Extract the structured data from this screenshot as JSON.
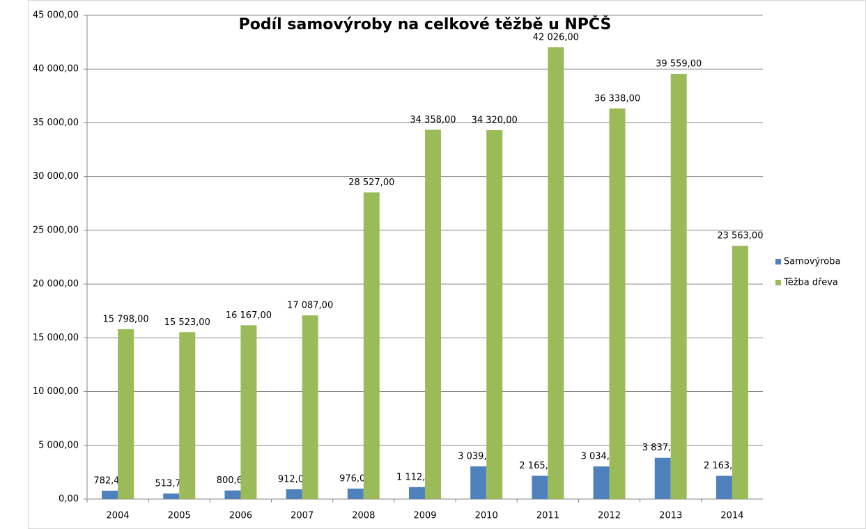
{
  "chart_data": {
    "type": "bar",
    "title": "Podíl samovýroby na celkové těžbě u NPČŠ",
    "categories": [
      "2004",
      "2005",
      "2006",
      "2007",
      "2008",
      "2009",
      "2010",
      "2011",
      "2012",
      "2013",
      "2014"
    ],
    "series": [
      {
        "name": "Samovýroba",
        "color": "#4f81bd",
        "values": [
          782.43,
          513.76,
          800.63,
          912.03,
          976.01,
          1112.94,
          3039.83,
          2165.11,
          3034.75,
          3837.41,
          2163.25
        ],
        "value_labels": [
          "782,43",
          "513,76",
          "800,63",
          "912,03",
          "976,01",
          "1 112,94",
          "3 039,83",
          "2 165,11",
          "3 034,75",
          "3 837,41",
          "2 163,25"
        ]
      },
      {
        "name": "Těžba dřeva",
        "color": "#9bbb59",
        "values": [
          15798,
          15523,
          16167,
          17087,
          28527,
          34358,
          34320,
          42026,
          36338,
          39559,
          23563
        ],
        "value_labels": [
          "15 798,00",
          "15 523,00",
          "16 167,00",
          "17 087,00",
          "28 527,00",
          "34 358,00",
          "34 320,00",
          "42 026,00",
          "36 338,00",
          "39 559,00",
          "23 563,00"
        ]
      }
    ],
    "ylim": [
      0,
      45000
    ],
    "yticks": [
      {
        "value": 0,
        "label": "0,00"
      },
      {
        "value": 5000,
        "label": "5 000,00"
      },
      {
        "value": 10000,
        "label": "10 000,00"
      },
      {
        "value": 15000,
        "label": "15 000,00"
      },
      {
        "value": 20000,
        "label": "20 000,00"
      },
      {
        "value": 25000,
        "label": "25 000,00"
      },
      {
        "value": 30000,
        "label": "30 000,00"
      },
      {
        "value": 35000,
        "label": "35 000,00"
      },
      {
        "value": 40000,
        "label": "40 000,00"
      },
      {
        "value": 45000,
        "label": "45 000,00"
      }
    ],
    "grid": true,
    "legend": "right"
  }
}
